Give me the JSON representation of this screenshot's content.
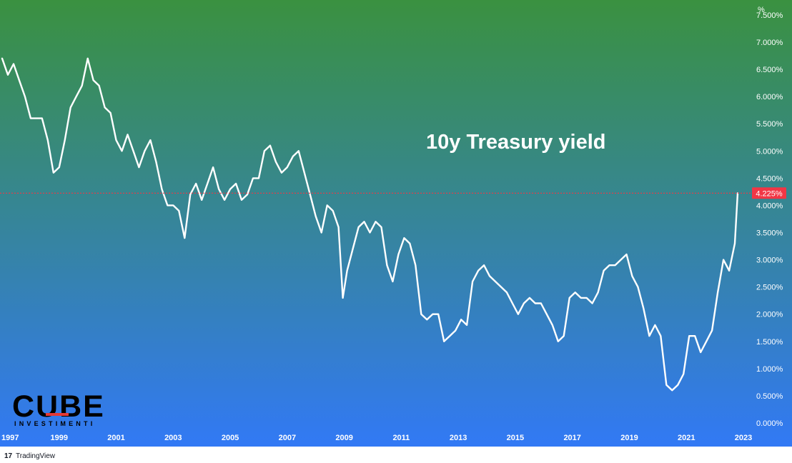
{
  "chart_data": {
    "type": "line",
    "title": "10y Treasury yield",
    "y_unit": "%",
    "ylim": [
      0,
      7.5
    ],
    "y_ticks": [
      "0.000%",
      "0.500%",
      "1.000%",
      "1.500%",
      "2.000%",
      "2.500%",
      "3.000%",
      "3.500%",
      "4.000%",
      "4.500%",
      "5.000%",
      "5.500%",
      "6.000%",
      "6.500%",
      "7.000%",
      "7.500%"
    ],
    "y_tick_values": [
      0,
      0.5,
      1,
      1.5,
      2,
      2.5,
      3,
      3.5,
      4,
      4.5,
      5,
      5.5,
      6,
      6.5,
      7,
      7.5
    ],
    "x_ticks": [
      "1997",
      "1999",
      "2001",
      "2003",
      "2005",
      "2007",
      "2009",
      "2011",
      "2013",
      "2015",
      "2017",
      "2019",
      "2021",
      "2023"
    ],
    "x_tick_values": [
      1997,
      1999,
      2001,
      2003,
      2005,
      2007,
      2009,
      2011,
      2013,
      2015,
      2017,
      2019,
      2021,
      2023
    ],
    "xlim": [
      1997,
      2024.5
    ],
    "current_value": 4.225,
    "current_label": "4.225%",
    "series": [
      {
        "x": [
          1997.0,
          1997.2,
          1997.4,
          1997.6,
          1997.8,
          1998.0,
          1998.2,
          1998.4,
          1998.6,
          1998.8,
          1999.0,
          1999.2,
          1999.4,
          1999.6,
          1999.8,
          2000.0,
          2000.2,
          2000.4,
          2000.6,
          2000.8,
          2001.0,
          2001.2,
          2001.4,
          2001.6,
          2001.8,
          2002.0,
          2002.2,
          2002.4,
          2002.6,
          2002.8,
          2003.0,
          2003.2,
          2003.4,
          2003.6,
          2003.8,
          2004.0,
          2004.2,
          2004.4,
          2004.6,
          2004.8,
          2005.0,
          2005.2,
          2005.4,
          2005.6,
          2005.8,
          2006.0,
          2006.2,
          2006.4,
          2006.6,
          2006.8,
          2007.0,
          2007.2,
          2007.4,
          2007.6,
          2007.8,
          2008.0,
          2008.2,
          2008.4,
          2008.6,
          2008.8,
          2008.95,
          2009.1,
          2009.3,
          2009.5,
          2009.7,
          2009.9,
          2010.1,
          2010.3,
          2010.5,
          2010.7,
          2010.9,
          2011.1,
          2011.3,
          2011.5,
          2011.7,
          2011.9,
          2012.1,
          2012.3,
          2012.5,
          2012.7,
          2012.9,
          2013.1,
          2013.3,
          2013.5,
          2013.7,
          2013.9,
          2014.1,
          2014.3,
          2014.5,
          2014.7,
          2014.9,
          2015.1,
          2015.3,
          2015.5,
          2015.7,
          2015.9,
          2016.1,
          2016.3,
          2016.5,
          2016.7,
          2016.9,
          2017.1,
          2017.3,
          2017.5,
          2017.7,
          2017.9,
          2018.1,
          2018.3,
          2018.5,
          2018.7,
          2018.9,
          2019.1,
          2019.3,
          2019.5,
          2019.7,
          2019.9,
          2020.1,
          2020.3,
          2020.5,
          2020.7,
          2020.9,
          2021.1,
          2021.3,
          2021.5,
          2021.7,
          2021.9,
          2022.1,
          2022.3,
          2022.5,
          2022.7,
          2022.8
        ],
        "y": [
          6.7,
          6.4,
          6.6,
          6.3,
          6.0,
          5.6,
          5.6,
          5.6,
          5.2,
          4.6,
          4.7,
          5.2,
          5.8,
          6.0,
          6.2,
          6.7,
          6.3,
          6.2,
          5.8,
          5.7,
          5.2,
          5.0,
          5.3,
          5.0,
          4.7,
          5.0,
          5.2,
          4.8,
          4.3,
          4.0,
          4.0,
          3.9,
          3.4,
          4.2,
          4.4,
          4.1,
          4.4,
          4.7,
          4.3,
          4.1,
          4.3,
          4.4,
          4.1,
          4.2,
          4.5,
          4.5,
          5.0,
          5.1,
          4.8,
          4.6,
          4.7,
          4.9,
          5.0,
          4.6,
          4.2,
          3.8,
          3.5,
          4.0,
          3.9,
          3.6,
          2.3,
          2.8,
          3.2,
          3.6,
          3.7,
          3.5,
          3.7,
          3.6,
          2.9,
          2.6,
          3.1,
          3.4,
          3.3,
          2.9,
          2.0,
          1.9,
          2.0,
          2.0,
          1.5,
          1.6,
          1.7,
          1.9,
          1.8,
          2.6,
          2.8,
          2.9,
          2.7,
          2.6,
          2.5,
          2.4,
          2.2,
          2.0,
          2.2,
          2.3,
          2.2,
          2.2,
          2.0,
          1.8,
          1.5,
          1.6,
          2.3,
          2.4,
          2.3,
          2.3,
          2.2,
          2.4,
          2.8,
          2.9,
          2.9,
          3.0,
          3.1,
          2.7,
          2.5,
          2.1,
          1.6,
          1.8,
          1.6,
          0.7,
          0.6,
          0.7,
          0.9,
          1.6,
          1.6,
          1.3,
          1.5,
          1.7,
          2.4,
          3.0,
          2.8,
          3.3,
          4.225
        ]
      }
    ]
  },
  "logo": {
    "name": "CUBE",
    "subtitle": "INVESTIMENTI"
  },
  "footer": {
    "brand": "TradingView"
  },
  "colors": {
    "bg_top": "#3a9140",
    "bg_bottom": "#3279f5",
    "line": "#ffffff",
    "current_line": "#f23645"
  }
}
